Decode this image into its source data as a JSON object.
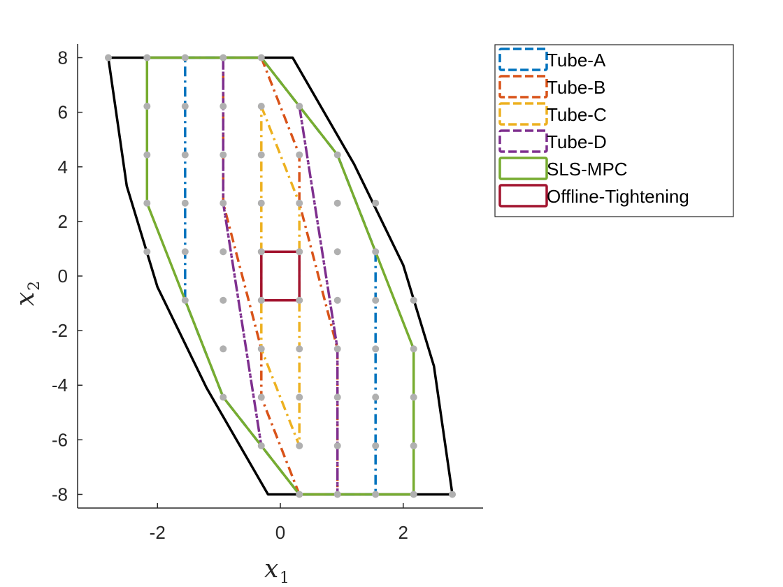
{
  "chart_data": {
    "type": "line",
    "xlabel": "x",
    "xlabel_sub": "1",
    "ylabel": "x",
    "ylabel_sub": "2",
    "xlim": [
      -3.3,
      3.3
    ],
    "ylim": [
      -8.5,
      8.5
    ],
    "xticks": [
      -2,
      0,
      2
    ],
    "xtick_labels": [
      "-2",
      "0",
      "2"
    ],
    "yticks": [
      -8,
      -6,
      -4,
      -2,
      0,
      2,
      4,
      6,
      8
    ],
    "ytick_labels": [
      "-8",
      "-6",
      "-4",
      "-2",
      "0",
      "2",
      "4",
      "6",
      "8"
    ],
    "grid": false,
    "legend_position": "outside-top-right",
    "outer_set": {
      "color": "#000000",
      "points": [
        [
          -2.8,
          8.0
        ],
        [
          0.2,
          8.0
        ],
        [
          1.2,
          4.1
        ],
        [
          2.0,
          0.4
        ],
        [
          2.5,
          -3.3
        ],
        [
          2.8,
          -8.0
        ],
        [
          -0.2,
          -8.0
        ],
        [
          -1.2,
          -4.1
        ],
        [
          -2.0,
          -0.4
        ],
        [
          -2.5,
          3.3
        ],
        [
          -2.8,
          8.0
        ]
      ]
    },
    "grid_points": {
      "color": "#b0b0b0",
      "points": [
        [
          -2.8,
          8.0
        ],
        [
          -2.17,
          8.0
        ],
        [
          -1.55,
          8.0
        ],
        [
          -0.93,
          8.0
        ],
        [
          -0.31,
          8.0
        ],
        [
          -2.17,
          6.22
        ],
        [
          -1.55,
          6.22
        ],
        [
          -0.93,
          6.22
        ],
        [
          -0.31,
          6.22
        ],
        [
          0.31,
          6.22
        ],
        [
          -2.17,
          4.44
        ],
        [
          -1.55,
          4.44
        ],
        [
          -0.93,
          4.44
        ],
        [
          -0.31,
          4.44
        ],
        [
          0.31,
          4.44
        ],
        [
          0.93,
          4.44
        ],
        [
          -2.17,
          2.67
        ],
        [
          -1.55,
          2.67
        ],
        [
          -0.93,
          2.67
        ],
        [
          -0.31,
          2.67
        ],
        [
          0.31,
          2.67
        ],
        [
          0.93,
          2.67
        ],
        [
          1.55,
          2.67
        ],
        [
          -2.17,
          0.89
        ],
        [
          -1.55,
          0.89
        ],
        [
          -0.93,
          0.89
        ],
        [
          -0.31,
          0.89
        ],
        [
          0.31,
          0.89
        ],
        [
          0.93,
          0.89
        ],
        [
          1.55,
          0.89
        ],
        [
          -1.55,
          -0.89
        ],
        [
          -0.93,
          -0.89
        ],
        [
          -0.31,
          -0.89
        ],
        [
          0.31,
          -0.89
        ],
        [
          0.93,
          -0.89
        ],
        [
          1.55,
          -0.89
        ],
        [
          2.17,
          -0.89
        ],
        [
          -0.93,
          -2.67
        ],
        [
          -0.31,
          -2.67
        ],
        [
          0.31,
          -2.67
        ],
        [
          0.93,
          -2.67
        ],
        [
          1.55,
          -2.67
        ],
        [
          2.17,
          -2.67
        ],
        [
          -0.93,
          -4.44
        ],
        [
          -0.31,
          -4.44
        ],
        [
          0.31,
          -4.44
        ],
        [
          0.93,
          -4.44
        ],
        [
          1.55,
          -4.44
        ],
        [
          2.17,
          -4.44
        ],
        [
          -0.31,
          -6.22
        ],
        [
          0.31,
          -6.22
        ],
        [
          0.93,
          -6.22
        ],
        [
          1.55,
          -6.22
        ],
        [
          2.17,
          -6.22
        ],
        [
          0.31,
          -8.0
        ],
        [
          0.93,
          -8.0
        ],
        [
          1.55,
          -8.0
        ],
        [
          2.17,
          -8.0
        ],
        [
          2.8,
          -8.0
        ]
      ]
    },
    "series": [
      {
        "name": "Tube-A",
        "color": "#0072BD",
        "style": "dashdot",
        "points": [
          [
            -1.55,
            8.0
          ],
          [
            -0.31,
            8.0
          ],
          [
            0.31,
            6.22
          ],
          [
            0.93,
            4.44
          ],
          [
            1.55,
            0.89
          ],
          [
            1.55,
            -8.0
          ],
          [
            0.31,
            -8.0
          ],
          [
            -0.31,
            -6.22
          ],
          [
            -0.93,
            -4.44
          ],
          [
            -1.55,
            -0.89
          ],
          [
            -1.55,
            8.0
          ]
        ]
      },
      {
        "name": "Tube-B",
        "color": "#D95319",
        "style": "dashdot",
        "points": [
          [
            -0.31,
            8.0
          ],
          [
            0.31,
            4.44
          ],
          [
            0.31,
            2.67
          ],
          [
            0.93,
            -2.67
          ],
          [
            0.93,
            -8.0
          ],
          [
            0.31,
            -8.0
          ],
          [
            -0.31,
            -4.44
          ],
          [
            -0.31,
            -2.67
          ],
          [
            -0.93,
            2.67
          ],
          [
            -0.93,
            8.0
          ],
          [
            -0.31,
            8.0
          ]
        ]
      },
      {
        "name": "Tube-C",
        "color": "#EDB120",
        "style": "dashdot",
        "points": [
          [
            -0.31,
            6.22
          ],
          [
            0.31,
            2.67
          ],
          [
            0.31,
            -6.22
          ],
          [
            -0.31,
            -2.67
          ],
          [
            -0.31,
            6.22
          ]
        ]
      },
      {
        "name": "Tube-D",
        "color": "#7E2F8E",
        "style": "dashdot",
        "points": [
          [
            -0.93,
            8.0
          ],
          [
            -0.93,
            2.67
          ],
          [
            -0.31,
            -6.22
          ],
          [
            -0.93,
            2.67
          ],
          [
            -0.93,
            8.0
          ]
        ],
        "points2": [
          [
            0.31,
            6.22
          ],
          [
            0.93,
            -2.67
          ],
          [
            0.93,
            -8.0
          ],
          [
            0.93,
            -2.67
          ],
          [
            0.31,
            6.22
          ]
        ]
      },
      {
        "name": "SLS-MPC",
        "color": "#77AC30",
        "style": "solid",
        "points": [
          [
            -2.17,
            8.0
          ],
          [
            -0.31,
            8.0
          ],
          [
            0.31,
            6.22
          ],
          [
            0.93,
            4.44
          ],
          [
            2.17,
            -2.67
          ],
          [
            2.17,
            -8.0
          ],
          [
            0.31,
            -8.0
          ],
          [
            -0.31,
            -6.22
          ],
          [
            -0.93,
            -4.44
          ],
          [
            -2.17,
            2.67
          ],
          [
            -2.17,
            8.0
          ]
        ]
      },
      {
        "name": "Offline-Tightening",
        "color": "#A2142F",
        "style": "solid",
        "points": [
          [
            -0.31,
            0.89
          ],
          [
            0.31,
            0.89
          ],
          [
            0.31,
            -0.89
          ],
          [
            -0.31,
            -0.89
          ],
          [
            -0.31,
            0.89
          ]
        ]
      }
    ]
  }
}
